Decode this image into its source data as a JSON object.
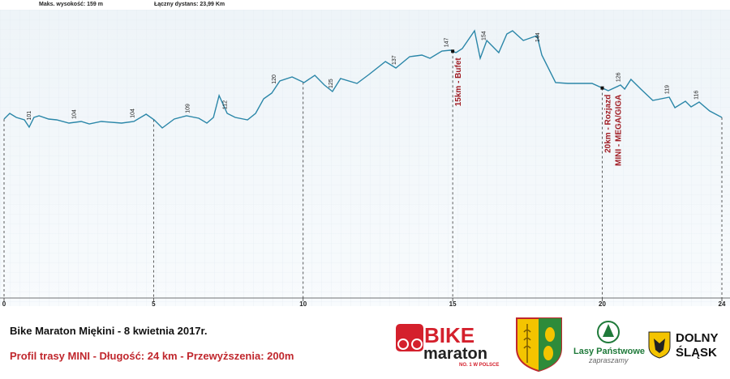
{
  "header": {
    "max_elevation": "Maks. wysokość: 159 m",
    "total_distance": "Łączny dystans: 23,99 Km"
  },
  "chart_data": {
    "type": "line",
    "color": "#2a86a8",
    "x": [
      0,
      0.19,
      0.41,
      0.68,
      0.84,
      1.0,
      1.17,
      1.49,
      1.76,
      2.17,
      2.58,
      2.85,
      3.25,
      3.93,
      4.34,
      4.75,
      5.02,
      5.29,
      5.69,
      6.1,
      6.51,
      6.78,
      7.0,
      7.19,
      7.46,
      7.73,
      8.14,
      8.41,
      8.68,
      8.95,
      9.22,
      9.63,
      10.03,
      10.39,
      10.71,
      10.98,
      11.25,
      11.8,
      12.2,
      12.75,
      13.1,
      13.56,
      13.97,
      14.24,
      14.64,
      14.92,
      15.11,
      15.32,
      15.73,
      15.92,
      16.14,
      16.54,
      16.81,
      17.0,
      17.36,
      17.82,
      17.98,
      18.44,
      18.85,
      19.66,
      20.2,
      20.61,
      20.75,
      20.96,
      21.29,
      21.69,
      22.24,
      22.43,
      22.78,
      22.97,
      23.24,
      23.59,
      24.0
    ],
    "values": [
      100,
      103.5,
      101,
      99.5,
      95,
      101,
      102,
      100,
      99.5,
      97.5,
      98.5,
      97,
      98.5,
      97.5,
      98.5,
      103,
      99.5,
      94.5,
      100,
      102,
      100.5,
      97.5,
      101,
      114.5,
      103.5,
      101,
      99.5,
      103.5,
      112.5,
      116,
      123.5,
      126,
      122.5,
      127,
      121,
      117,
      125,
      122,
      127.5,
      135.5,
      131.5,
      138.5,
      139.5,
      137.5,
      142,
      142.5,
      141,
      143.5,
      154.5,
      137.5,
      148.5,
      141,
      152.5,
      154.5,
      148.5,
      151.5,
      139.5,
      122.5,
      122,
      122,
      117.5,
      121,
      118.5,
      124.5,
      118.5,
      111.5,
      113.5,
      107,
      111,
      107.5,
      110.5,
      105,
      101
    ],
    "xlim": [
      0,
      24
    ],
    "xticks": [
      0,
      5,
      10,
      15,
      20,
      24
    ],
    "ylim": [
      0,
      160
    ],
    "elevation_labels": [
      {
        "x": 0.9,
        "value": 101
      },
      {
        "x": 2.4,
        "value": 104
      },
      {
        "x": 4.35,
        "value": 104
      },
      {
        "x": 6.2,
        "value": 109
      },
      {
        "x": 7.45,
        "value": 112
      },
      {
        "x": 9.08,
        "value": 120
      },
      {
        "x": 10.98,
        "value": 125
      },
      {
        "x": 13.1,
        "value": 137
      },
      {
        "x": 14.85,
        "value": 147
      },
      {
        "x": 16.1,
        "value": 154
      },
      {
        "x": 17.9,
        "value": 144
      },
      {
        "x": 20.6,
        "value": 126
      },
      {
        "x": 22.23,
        "value": 119
      },
      {
        "x": 23.2,
        "value": 116
      }
    ],
    "annotations": [
      {
        "x": 15,
        "lines": [
          "15km - Bufet"
        ]
      },
      {
        "x": 20,
        "lines": [
          "20km - Rozjazd",
          "MINI - MEGA/GIGA"
        ]
      }
    ]
  },
  "footer": {
    "title": "Bike Maraton Miękini - 8 kwietnia 2017r.",
    "subtitle": "Profil trasy MINI - Długość: 24 km - Przewyższenia: 200m"
  },
  "logos": {
    "bike": "BIKE",
    "maraton": "maraton",
    "slogan": "NO. 1 W POLSCE",
    "lasy": "Lasy Państwowe",
    "zapraszamy": "zapraszamy",
    "dolny": "DOLNY",
    "slask": "ŚLĄSK"
  }
}
